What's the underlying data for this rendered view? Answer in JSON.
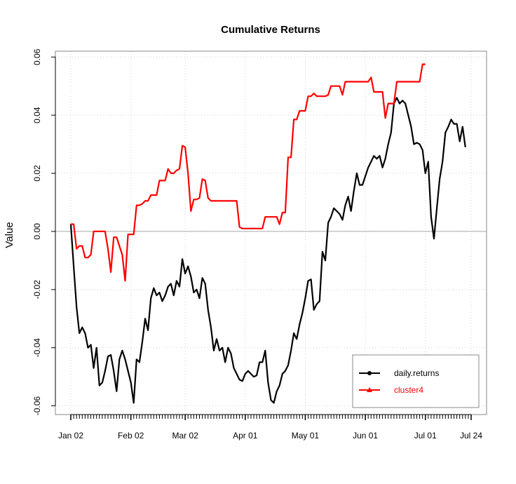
{
  "chart_data": {
    "type": "line",
    "title": "Cumulative Returns",
    "xlabel": "",
    "ylabel": "Value",
    "ylim": [
      -0.063,
      0.062
    ],
    "grid": true,
    "legend_position": "bottom-right",
    "x_ticks": [
      {
        "label": "Jan 02",
        "day": 0
      },
      {
        "label": "Feb 02",
        "day": 21
      },
      {
        "label": "Mar 02",
        "day": 40
      },
      {
        "label": "Apr 01",
        "day": 61
      },
      {
        "label": "May 01",
        "day": 82
      },
      {
        "label": "Jun 01",
        "day": 103
      },
      {
        "label": "Jul 01",
        "day": 124
      },
      {
        "label": "Jul 24",
        "day": 140
      }
    ],
    "y_ticks": [
      -0.06,
      -0.04,
      -0.02,
      0.0,
      0.02,
      0.04,
      0.06
    ],
    "y_tick_labels": [
      "-0.06",
      "-0.04",
      "-0.02",
      "0.00",
      "0.02",
      "0.04",
      "0.06"
    ],
    "series": [
      {
        "name": "daily.returns",
        "color": "#000000",
        "marker": "circle",
        "points": [
          [
            0,
            0.0025
          ],
          [
            1,
            -0.012
          ],
          [
            2,
            -0.026
          ],
          [
            3,
            -0.035
          ],
          [
            4,
            -0.033
          ],
          [
            5,
            -0.035
          ],
          [
            6,
            -0.04
          ],
          [
            7,
            -0.039
          ],
          [
            8,
            -0.047
          ],
          [
            9,
            -0.04
          ],
          [
            10,
            -0.053
          ],
          [
            11,
            -0.052
          ],
          [
            12,
            -0.048
          ],
          [
            13,
            -0.043
          ],
          [
            14,
            -0.0425
          ],
          [
            15,
            -0.048
          ],
          [
            16,
            -0.055
          ],
          [
            17,
            -0.044
          ],
          [
            18,
            -0.041
          ],
          [
            19,
            -0.044
          ],
          [
            20,
            -0.048
          ],
          [
            21,
            -0.052
          ],
          [
            22,
            -0.059
          ],
          [
            23,
            -0.044
          ],
          [
            24,
            -0.045
          ],
          [
            25,
            -0.038
          ],
          [
            26,
            -0.03
          ],
          [
            27,
            -0.034
          ],
          [
            28,
            -0.023
          ],
          [
            29,
            -0.0195
          ],
          [
            30,
            -0.022
          ],
          [
            31,
            -0.021
          ],
          [
            32,
            -0.024
          ],
          [
            33,
            -0.022
          ],
          [
            34,
            -0.019
          ],
          [
            35,
            -0.018
          ],
          [
            36,
            -0.022
          ],
          [
            37,
            -0.017
          ],
          [
            38,
            -0.019
          ],
          [
            39,
            -0.0095
          ],
          [
            40,
            -0.0145
          ],
          [
            41,
            -0.012
          ],
          [
            42,
            -0.0155
          ],
          [
            43,
            -0.021
          ],
          [
            44,
            -0.02
          ],
          [
            45,
            -0.023
          ],
          [
            46,
            -0.016
          ],
          [
            47,
            -0.018
          ],
          [
            48,
            -0.027
          ],
          [
            49,
            -0.033
          ],
          [
            50,
            -0.041
          ],
          [
            51,
            -0.037
          ],
          [
            52,
            -0.041
          ],
          [
            53,
            -0.04
          ],
          [
            54,
            -0.045
          ],
          [
            55,
            -0.04
          ],
          [
            56,
            -0.042
          ],
          [
            57,
            -0.047
          ],
          [
            58,
            -0.049
          ],
          [
            59,
            -0.051
          ],
          [
            60,
            -0.0515
          ],
          [
            61,
            -0.049
          ],
          [
            62,
            -0.048
          ],
          [
            63,
            -0.049
          ],
          [
            64,
            -0.05
          ],
          [
            65,
            -0.0495
          ],
          [
            66,
            -0.045
          ],
          [
            67,
            -0.045
          ],
          [
            68,
            -0.041
          ],
          [
            69,
            -0.052
          ],
          [
            70,
            -0.058
          ],
          [
            71,
            -0.059
          ],
          [
            72,
            -0.055
          ],
          [
            73,
            -0.053
          ],
          [
            74,
            -0.049
          ],
          [
            75,
            -0.048
          ],
          [
            76,
            -0.046
          ],
          [
            77,
            -0.041
          ],
          [
            78,
            -0.035
          ],
          [
            79,
            -0.037
          ],
          [
            80,
            -0.032
          ],
          [
            81,
            -0.028
          ],
          [
            82,
            -0.023
          ],
          [
            83,
            -0.017
          ],
          [
            84,
            -0.0165
          ],
          [
            85,
            -0.027
          ],
          [
            86,
            -0.025
          ],
          [
            87,
            -0.024
          ],
          [
            88,
            -0.007
          ],
          [
            89,
            -0.01
          ],
          [
            90,
            0.003
          ],
          [
            91,
            0.005
          ],
          [
            92,
            0.008
          ],
          [
            93,
            0.007
          ],
          [
            94,
            0.006
          ],
          [
            95,
            0.004
          ],
          [
            96,
            0.009
          ],
          [
            97,
            0.012
          ],
          [
            98,
            0.007
          ],
          [
            99,
            0.014
          ],
          [
            100,
            0.02
          ],
          [
            101,
            0.016
          ],
          [
            102,
            0.016
          ],
          [
            103,
            0.019
          ],
          [
            104,
            0.022
          ],
          [
            105,
            0.024
          ],
          [
            106,
            0.026
          ],
          [
            107,
            0.025
          ],
          [
            108,
            0.026
          ],
          [
            109,
            0.022
          ],
          [
            110,
            0.025
          ],
          [
            111,
            0.03
          ],
          [
            112,
            0.034
          ],
          [
            113,
            0.044
          ],
          [
            114,
            0.046
          ],
          [
            115,
            0.044
          ],
          [
            116,
            0.045
          ],
          [
            117,
            0.044
          ],
          [
            118,
            0.04
          ],
          [
            119,
            0.036
          ],
          [
            120,
            0.03
          ],
          [
            121,
            0.0305
          ],
          [
            122,
            0.03
          ],
          [
            123,
            0.028
          ],
          [
            124,
            0.02
          ],
          [
            125,
            0.024
          ],
          [
            126,
            0.005
          ],
          [
            127,
            -0.0025
          ],
          [
            128,
            0.008
          ],
          [
            129,
            0.018
          ],
          [
            130,
            0.024
          ],
          [
            131,
            0.034
          ],
          [
            132,
            0.036
          ],
          [
            133,
            0.0385
          ],
          [
            134,
            0.037
          ],
          [
            135,
            0.037
          ],
          [
            136,
            0.031
          ],
          [
            137,
            0.036
          ],
          [
            138,
            0.029
          ]
        ]
      },
      {
        "name": "cluster4",
        "color": "#ff0000",
        "marker": "triangle",
        "points": [
          [
            0,
            0.0025
          ],
          [
            1,
            0.0025
          ],
          [
            2,
            -0.006
          ],
          [
            3,
            -0.005
          ],
          [
            4,
            -0.005
          ],
          [
            5,
            -0.009
          ],
          [
            6,
            -0.009
          ],
          [
            7,
            -0.008
          ],
          [
            8,
            0.0
          ],
          [
            9,
            0.0
          ],
          [
            10,
            0.0
          ],
          [
            11,
            0.0
          ],
          [
            12,
            0.0
          ],
          [
            13,
            -0.006
          ],
          [
            14,
            -0.014
          ],
          [
            15,
            -0.002
          ],
          [
            16,
            -0.002
          ],
          [
            17,
            -0.005
          ],
          [
            18,
            -0.008
          ],
          [
            19,
            -0.017
          ],
          [
            20,
            -0.001
          ],
          [
            21,
            -0.001
          ],
          [
            22,
            -0.001
          ],
          [
            23,
            0.009
          ],
          [
            24,
            0.009
          ],
          [
            25,
            0.0095
          ],
          [
            26,
            0.0105
          ],
          [
            27,
            0.0105
          ],
          [
            28,
            0.0125
          ],
          [
            29,
            0.0125
          ],
          [
            30,
            0.0125
          ],
          [
            31,
            0.0175
          ],
          [
            32,
            0.0175
          ],
          [
            33,
            0.0175
          ],
          [
            34,
            0.0215
          ],
          [
            35,
            0.02
          ],
          [
            36,
            0.02
          ],
          [
            37,
            0.021
          ],
          [
            38,
            0.0215
          ],
          [
            39,
            0.0295
          ],
          [
            40,
            0.029
          ],
          [
            41,
            0.02
          ],
          [
            42,
            0.007
          ],
          [
            43,
            0.011
          ],
          [
            44,
            0.011
          ],
          [
            45,
            0.0115
          ],
          [
            46,
            0.018
          ],
          [
            47,
            0.0175
          ],
          [
            48,
            0.0115
          ],
          [
            49,
            0.0105
          ],
          [
            50,
            0.0105
          ],
          [
            51,
            0.0105
          ],
          [
            52,
            0.0105
          ],
          [
            53,
            0.0105
          ],
          [
            54,
            0.0105
          ],
          [
            55,
            0.0105
          ],
          [
            56,
            0.0105
          ],
          [
            57,
            0.0105
          ],
          [
            58,
            0.0105
          ],
          [
            59,
            0.0015
          ],
          [
            60,
            0.001
          ],
          [
            61,
            0.001
          ],
          [
            62,
            0.001
          ],
          [
            63,
            0.001
          ],
          [
            64,
            0.001
          ],
          [
            65,
            0.001
          ],
          [
            66,
            0.001
          ],
          [
            67,
            0.001
          ],
          [
            68,
            0.005
          ],
          [
            69,
            0.005
          ],
          [
            70,
            0.005
          ],
          [
            71,
            0.005
          ],
          [
            72,
            0.005
          ],
          [
            73,
            0.0025
          ],
          [
            74,
            0.0065
          ],
          [
            75,
            0.0065
          ],
          [
            76,
            0.0255
          ],
          [
            77,
            0.0255
          ],
          [
            78,
            0.0385
          ],
          [
            79,
            0.0385
          ],
          [
            80,
            0.0415
          ],
          [
            81,
            0.0415
          ],
          [
            82,
            0.0415
          ],
          [
            83,
            0.0465
          ],
          [
            84,
            0.0465
          ],
          [
            85,
            0.0475
          ],
          [
            86,
            0.0465
          ],
          [
            87,
            0.0465
          ],
          [
            88,
            0.0465
          ],
          [
            89,
            0.0465
          ],
          [
            90,
            0.047
          ],
          [
            91,
            0.05
          ],
          [
            92,
            0.05
          ],
          [
            93,
            0.05
          ],
          [
            94,
            0.05
          ],
          [
            95,
            0.047
          ],
          [
            96,
            0.0515
          ],
          [
            97,
            0.0515
          ],
          [
            98,
            0.0515
          ],
          [
            99,
            0.0515
          ],
          [
            100,
            0.0515
          ],
          [
            101,
            0.0515
          ],
          [
            102,
            0.0515
          ],
          [
            103,
            0.0515
          ],
          [
            104,
            0.0515
          ],
          [
            105,
            0.053
          ],
          [
            106,
            0.048
          ],
          [
            107,
            0.048
          ],
          [
            108,
            0.048
          ],
          [
            109,
            0.048
          ],
          [
            110,
            0.039
          ],
          [
            111,
            0.044
          ],
          [
            112,
            0.044
          ],
          [
            113,
            0.044
          ],
          [
            114,
            0.0515
          ],
          [
            115,
            0.0515
          ],
          [
            116,
            0.0515
          ],
          [
            117,
            0.0515
          ],
          [
            118,
            0.0515
          ],
          [
            119,
            0.0515
          ],
          [
            120,
            0.0515
          ],
          [
            121,
            0.0515
          ],
          [
            122,
            0.0515
          ],
          [
            123,
            0.0575
          ],
          [
            124,
            0.0575
          ]
        ]
      }
    ]
  }
}
